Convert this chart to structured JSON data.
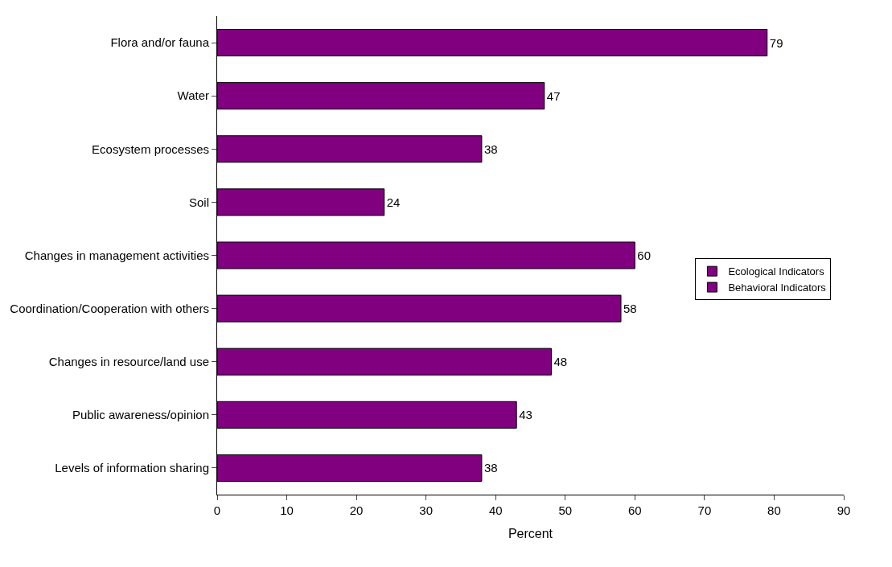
{
  "chart_data": {
    "type": "bar",
    "orientation": "horizontal",
    "xlabel": "Percent",
    "categories": [
      "Flora and/or fauna",
      "Water",
      "Ecosystem processes",
      "Soil",
      "Changes in management activities",
      "Coordination/Cooperation with others",
      "Changes in resource/land use",
      "Public awareness/opinion",
      "Levels of information sharing"
    ],
    "series": [
      {
        "name": "Ecological Indicators",
        "color": "#800080",
        "values": [
          79,
          47,
          38,
          24,
          null,
          null,
          null,
          null,
          null
        ]
      },
      {
        "name": "Behavioral Indicators",
        "color": "#800080",
        "values": [
          null,
          null,
          null,
          null,
          60,
          58,
          48,
          43,
          38
        ]
      }
    ],
    "xlim": [
      0,
      90
    ],
    "xticks": [
      0,
      10,
      20,
      30,
      40,
      50,
      60,
      70,
      80,
      90
    ],
    "data_labels": true,
    "legend": "right",
    "grid": false
  }
}
